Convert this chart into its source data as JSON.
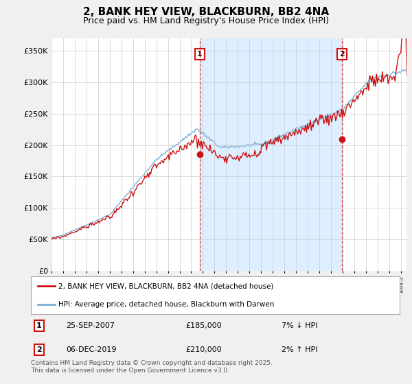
{
  "title": "2, BANK HEY VIEW, BLACKBURN, BB2 4NA",
  "subtitle": "Price paid vs. HM Land Registry's House Price Index (HPI)",
  "ylabel_ticks": [
    "£0",
    "£50K",
    "£100K",
    "£150K",
    "£200K",
    "£250K",
    "£300K",
    "£350K"
  ],
  "ytick_values": [
    0,
    50000,
    100000,
    150000,
    200000,
    250000,
    300000,
    350000
  ],
  "ylim": [
    0,
    370000
  ],
  "xlim_start": 1995.0,
  "xlim_end": 2025.5,
  "hpi_color": "#7ab0d4",
  "hpi_fill_color": "#ddeeff",
  "price_color": "#cc1111",
  "marker1_date": 2007.73,
  "marker1_price": 185000,
  "marker1_label": "1",
  "marker2_date": 2019.93,
  "marker2_price": 210000,
  "marker2_label": "2",
  "legend_line1": "2, BANK HEY VIEW, BLACKBURN, BB2 4NA (detached house)",
  "legend_line2": "HPI: Average price, detached house, Blackburn with Darwen",
  "annotation1_date": "25-SEP-2007",
  "annotation1_price": "£185,000",
  "annotation1_hpi": "7% ↓ HPI",
  "annotation2_date": "06-DEC-2019",
  "annotation2_price": "£210,000",
  "annotation2_hpi": "2% ↑ HPI",
  "footer": "Contains HM Land Registry data © Crown copyright and database right 2025.\nThis data is licensed under the Open Government Licence v3.0.",
  "bg_color": "#f0f0f0",
  "plot_bg_color": "#ffffff",
  "grid_color": "#cccccc"
}
